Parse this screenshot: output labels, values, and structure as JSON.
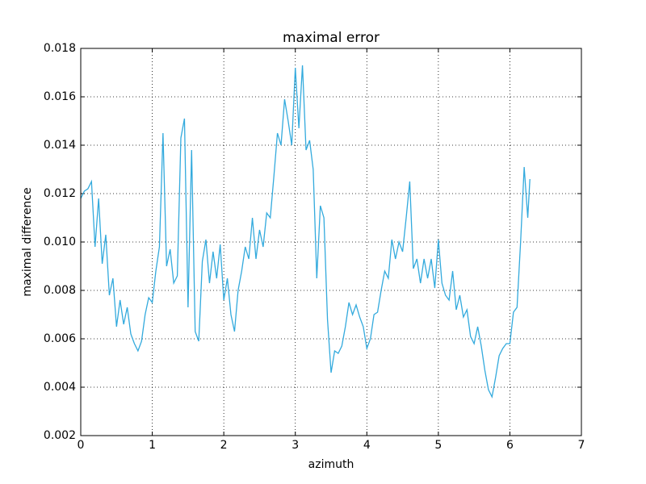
{
  "chart_data": {
    "type": "line",
    "title": "maximal error",
    "x_label": "azimuth",
    "y_label": "maximal difference",
    "x": [
      0,
      0.05,
      0.1,
      0.15,
      0.2,
      0.25,
      0.3,
      0.35,
      0.4,
      0.45,
      0.5,
      0.55,
      0.6,
      0.65,
      0.7,
      0.75,
      0.8,
      0.85,
      0.9,
      0.95,
      1,
      1.05,
      1.1,
      1.15,
      1.2,
      1.25,
      1.3,
      1.35,
      1.4,
      1.45,
      1.5,
      1.55,
      1.6,
      1.65,
      1.7,
      1.75,
      1.8,
      1.85,
      1.9,
      1.95,
      2,
      2.05,
      2.1,
      2.15,
      2.2,
      2.25,
      2.3,
      2.35,
      2.4,
      2.45,
      2.5,
      2.55,
      2.6,
      2.65,
      2.7,
      2.75,
      2.8,
      2.85,
      2.9,
      2.95,
      3,
      3.05,
      3.1,
      3.15,
      3.2,
      3.25,
      3.3,
      3.35,
      3.4,
      3.45,
      3.5,
      3.55,
      3.6,
      3.65,
      3.7,
      3.75,
      3.8,
      3.85,
      3.9,
      3.95,
      4,
      4.05,
      4.1,
      4.15,
      4.2,
      4.25,
      4.3,
      4.35,
      4.4,
      4.45,
      4.5,
      4.55,
      4.6,
      4.65,
      4.7,
      4.75,
      4.8,
      4.85,
      4.9,
      4.95,
      5,
      5.05,
      5.1,
      5.15,
      5.2,
      5.25,
      5.3,
      5.35,
      5.4,
      5.45,
      5.5,
      5.55,
      5.6,
      5.65,
      5.7,
      5.75,
      5.8,
      5.85,
      5.9,
      5.95,
      6,
      6.05,
      6.1,
      6.15,
      6.2,
      6.25,
      6.28
    ],
    "series": [
      {
        "color": "#33aadd",
        "values": [
          0.0118,
          0.0121,
          0.0122,
          0.0125,
          0.0098,
          0.0118,
          0.0091,
          0.0103,
          0.0078,
          0.0085,
          0.0065,
          0.0076,
          0.0066,
          0.0073,
          0.0062,
          0.0058,
          0.0055,
          0.0059,
          0.007,
          0.0077,
          0.0075,
          0.0088,
          0.0098,
          0.0145,
          0.009,
          0.0097,
          0.0083,
          0.0086,
          0.0143,
          0.0151,
          0.0073,
          0.0138,
          0.0063,
          0.0059,
          0.0092,
          0.0101,
          0.0083,
          0.0096,
          0.0085,
          0.0099,
          0.0076,
          0.0085,
          0.007,
          0.0063,
          0.008,
          0.0088,
          0.0098,
          0.0093,
          0.011,
          0.0093,
          0.0105,
          0.0098,
          0.0112,
          0.011,
          0.0127,
          0.0145,
          0.014,
          0.0159,
          0.015,
          0.014,
          0.0172,
          0.0147,
          0.0173,
          0.0138,
          0.0142,
          0.013,
          0.0085,
          0.0115,
          0.011,
          0.0068,
          0.0046,
          0.0055,
          0.0054,
          0.0057,
          0.0065,
          0.0075,
          0.007,
          0.0074,
          0.0069,
          0.0065,
          0.0056,
          0.006,
          0.007,
          0.0071,
          0.008,
          0.0088,
          0.0085,
          0.0101,
          0.0093,
          0.01,
          0.0096,
          0.011,
          0.0125,
          0.0089,
          0.0093,
          0.0083,
          0.0093,
          0.0085,
          0.0093,
          0.0081,
          0.0101,
          0.0083,
          0.0078,
          0.0076,
          0.0088,
          0.0072,
          0.0078,
          0.0069,
          0.0072,
          0.0061,
          0.0058,
          0.0065,
          0.0057,
          0.0047,
          0.0039,
          0.0036,
          0.0044,
          0.0053,
          0.0056,
          0.0058,
          0.0058,
          0.0071,
          0.0073,
          0.01,
          0.0131,
          0.011,
          0.0126
        ]
      }
    ],
    "xlim": [
      0,
      7
    ],
    "xticks": [
      0,
      1,
      2,
      3,
      4,
      5,
      6,
      7
    ],
    "ylim": [
      0.002,
      0.018
    ],
    "yticks": [
      0.002,
      0.004,
      0.006,
      0.008,
      {
        "value": 0.01,
        "label": "0.010"
      },
      0.012,
      0.014,
      0.016,
      0.018
    ],
    "grid": true
  }
}
